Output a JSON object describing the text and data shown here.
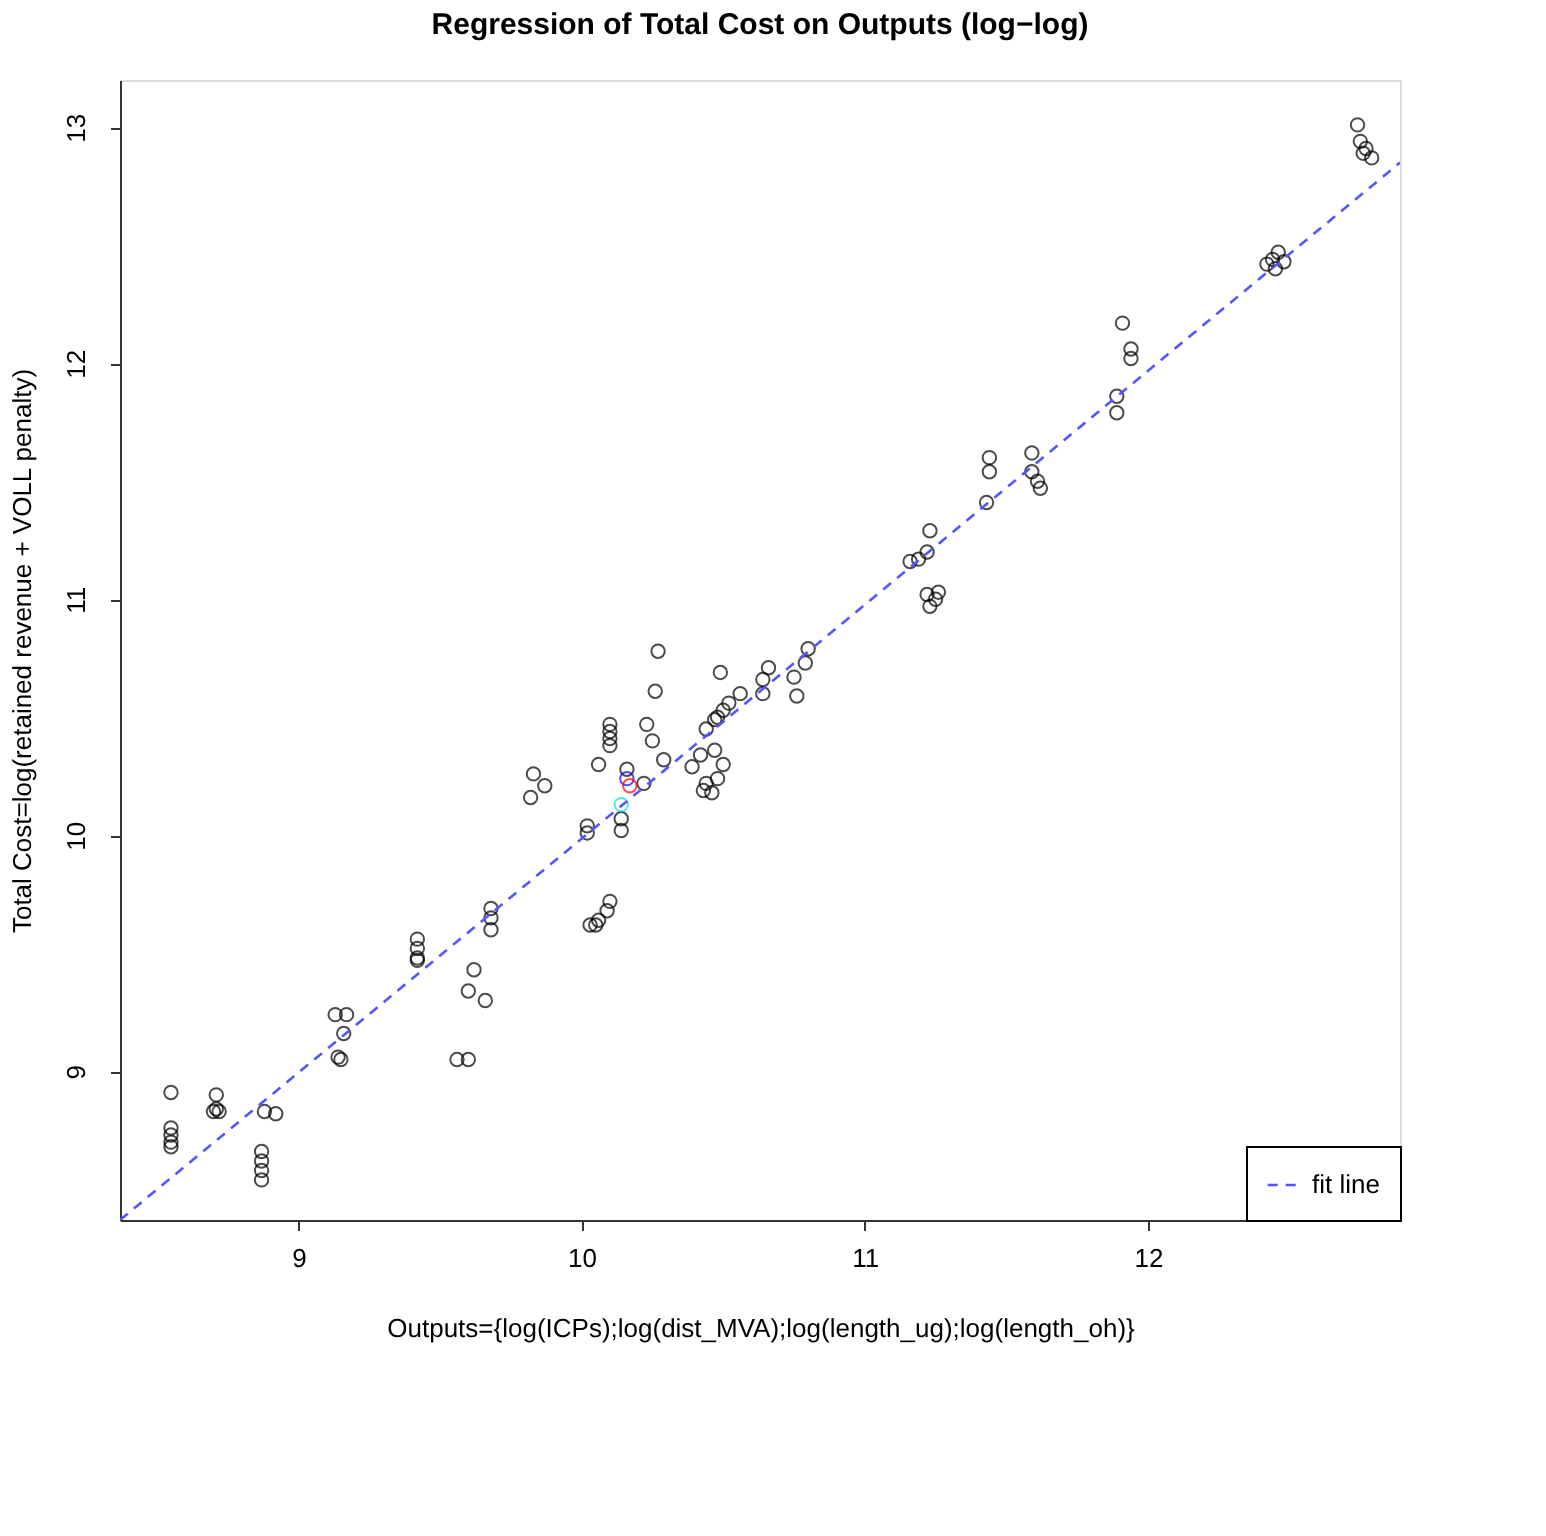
{
  "chart_data": {
    "type": "scatter",
    "title": "Regression of Total Cost on Outputs (log−log)",
    "xlabel": "Outputs={log(ICPs);log(dist_MVA);log(length_ug);log(length_oh)}",
    "ylabel": "Total Cost=log(retained revenue + VOLL penalty)",
    "xlim": [
      8.37,
      12.89
    ],
    "ylim": [
      8.37,
      13.2
    ],
    "xticks": [
      9,
      10,
      11,
      12
    ],
    "yticks": [
      9,
      10,
      11,
      12,
      13
    ],
    "grid": false,
    "legend": "bottom right",
    "marker": "circle",
    "series": [
      {
        "color": "#000000",
        "x": [
          8.55,
          8.55,
          8.55,
          8.55,
          8.55,
          8.71,
          8.71,
          8.72,
          8.7,
          8.88,
          8.92,
          8.87,
          8.87,
          8.87,
          8.87,
          9.13,
          9.17,
          9.16,
          9.14,
          9.15,
          9.42,
          9.42,
          9.42,
          9.42,
          9.68,
          9.68,
          9.68,
          9.62,
          9.6,
          9.66,
          9.56,
          9.6,
          10.03,
          10.05,
          10.06,
          10.09,
          10.1,
          10.02,
          10.02,
          10.14,
          10.14,
          9.82,
          9.87,
          9.83,
          10.06,
          10.1,
          10.1,
          10.1,
          10.1,
          10.16,
          10.22,
          10.23,
          10.25,
          10.29,
          10.26,
          10.27,
          10.49,
          10.39,
          10.42,
          10.44,
          10.46,
          10.48,
          10.5,
          10.47,
          10.43,
          10.44,
          10.47,
          10.5,
          10.52,
          10.48,
          10.56,
          10.64,
          10.64,
          10.66,
          10.75,
          10.76,
          10.8,
          10.79,
          11.23,
          11.16,
          11.19,
          11.22,
          11.22,
          11.25,
          11.23,
          11.26,
          11.43,
          11.44,
          11.44,
          11.59,
          11.59,
          11.61,
          11.62,
          11.89,
          11.89,
          11.91,
          11.94,
          11.94,
          12.42,
          12.44,
          12.46,
          12.48,
          12.45,
          12.74,
          12.75,
          12.77,
          12.79,
          12.76
        ],
        "values": [
          8.91,
          8.76,
          8.73,
          8.7,
          8.68,
          8.9,
          8.84,
          8.83,
          8.83,
          8.83,
          8.82,
          8.66,
          8.62,
          8.58,
          8.54,
          9.24,
          9.24,
          9.16,
          9.06,
          9.05,
          9.56,
          9.52,
          9.48,
          9.47,
          9.69,
          9.65,
          9.6,
          9.43,
          9.34,
          9.3,
          9.05,
          9.05,
          9.62,
          9.62,
          9.64,
          9.68,
          9.72,
          10.04,
          10.01,
          10.07,
          10.02,
          10.16,
          10.21,
          10.26,
          10.3,
          10.47,
          10.44,
          10.41,
          10.38,
          10.28,
          10.22,
          10.47,
          10.4,
          10.32,
          10.61,
          10.78,
          10.69,
          10.29,
          10.34,
          10.22,
          10.18,
          10.24,
          10.3,
          10.36,
          10.19,
          10.45,
          10.49,
          10.53,
          10.56,
          10.5,
          10.6,
          10.66,
          10.6,
          10.71,
          10.67,
          10.59,
          10.79,
          10.73,
          11.29,
          11.16,
          11.17,
          11.2,
          11.02,
          11.0,
          10.97,
          11.03,
          11.41,
          11.6,
          11.54,
          11.62,
          11.54,
          11.5,
          11.47,
          11.86,
          11.79,
          12.17,
          12.06,
          12.02,
          12.42,
          12.44,
          12.47,
          12.43,
          12.4,
          13.01,
          12.94,
          12.91,
          12.87,
          12.89
        ]
      },
      {
        "type": "scatter",
        "color": "#0000ff",
        "x": [
          10.16
        ],
        "values": [
          10.24
        ]
      },
      {
        "type": "scatter",
        "color": "#ff0000",
        "x": [
          10.17
        ],
        "values": [
          10.21
        ]
      },
      {
        "type": "scatter",
        "color": "#00e5ee",
        "x": [
          10.14
        ],
        "values": [
          10.13
        ]
      },
      {
        "type": "line",
        "name": "fit line",
        "color": "#5555ff",
        "line_style": "dashed",
        "marker": "none",
        "x": [
          8.37,
          12.89
        ],
        "values": [
          8.37,
          12.85
        ]
      }
    ]
  }
}
